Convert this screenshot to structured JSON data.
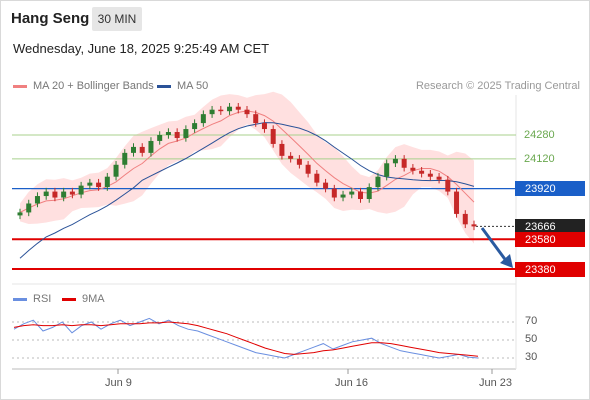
{
  "header": {
    "instrument": "Hang Seng",
    "timeframe": "30 MIN",
    "datetime": "Wednesday, June 18, 2025 9:25:49 AM CET"
  },
  "legend": {
    "ma20_label": "MA 20 + Bollinger Bands",
    "ma50_label": "MA 50",
    "credit": "Research © 2025 Trading Central"
  },
  "levels": {
    "r2": "24280",
    "r1": "24120",
    "pivot": "23920",
    "last": "23666",
    "s1": "23580",
    "s2": "23380"
  },
  "x_axis": [
    "Jun 9",
    "Jun 16",
    "Jun 23"
  ],
  "rsi_panel": {
    "rsi_label": "RSI",
    "ma_label": "9MA",
    "ticks": [
      "70",
      "50",
      "30"
    ]
  },
  "colors": {
    "ma20": "#f08080",
    "ma50": "#2a5298",
    "bands_fill": "#ffd6d6",
    "up_candle": "#2e7d32",
    "down_candle": "#c62828",
    "resistance_line": "#a8d08d",
    "resistance_text": "#6aa84f",
    "pivot": "#1a5fc8",
    "support": "#e00000",
    "last_tag": "#222222",
    "arrow": "#2a5aa0",
    "rsi_line": "#6a8fe0",
    "rsi_ma": "#e00000"
  },
  "chart_data": {
    "type": "candlestick",
    "title": "Hang Seng",
    "timeframe": "30 MIN",
    "x_ticks": [
      "Jun 9",
      "Jun 16",
      "Jun 23"
    ],
    "price_levels": [
      24280,
      24120,
      23920,
      23666,
      23580,
      23380
    ],
    "last_price": 23666,
    "close_series": [
      23760,
      23820,
      23870,
      23900,
      23860,
      23900,
      23880,
      23940,
      23960,
      23930,
      24000,
      24080,
      24160,
      24200,
      24160,
      24240,
      24280,
      24300,
      24260,
      24320,
      24360,
      24420,
      24450,
      24440,
      24470,
      24450,
      24420,
      24360,
      24320,
      24220,
      24140,
      24120,
      24080,
      24020,
      23960,
      23920,
      23860,
      23880,
      23900,
      23850,
      23930,
      24000,
      24090,
      24120,
      24060,
      24040,
      24020,
      24000,
      23980,
      23900,
      23750,
      23680,
      23666
    ],
    "forecast": "down",
    "rsi": {
      "ticks": [
        70,
        50,
        30
      ],
      "values": [
        62,
        68,
        72,
        60,
        64,
        70,
        58,
        66,
        70,
        62,
        68,
        72,
        66,
        70,
        74,
        68,
        72,
        66,
        62,
        60,
        56,
        52,
        48,
        44,
        40,
        36,
        34,
        32,
        30,
        34,
        38,
        42,
        46,
        40,
        44,
        48,
        50,
        52,
        46,
        42,
        38,
        36,
        34,
        32,
        30,
        32,
        34,
        31,
        30
      ],
      "ma9": [
        64,
        66,
        67,
        66,
        66,
        67,
        66,
        67,
        67,
        66,
        67,
        68,
        68,
        68,
        69,
        69,
        70,
        69,
        68,
        66,
        63,
        60,
        57,
        53,
        49,
        45,
        41,
        38,
        35,
        34,
        35,
        36,
        38,
        39,
        41,
        43,
        45,
        47,
        47,
        46,
        44,
        42,
        40,
        38,
        36,
        35,
        34,
        33,
        32
      ]
    }
  }
}
